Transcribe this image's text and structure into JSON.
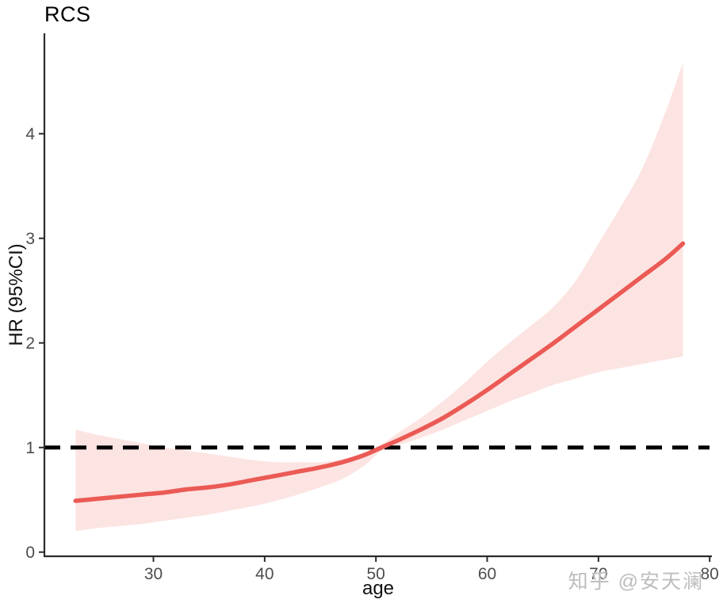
{
  "watermark": {
    "text": "知乎 @安天澜"
  },
  "chart_data": {
    "type": "line",
    "title": "RCS",
    "xlabel": "age",
    "ylabel": "HR (95%CI)",
    "x": [
      23,
      25,
      27,
      29,
      31,
      33,
      35,
      37,
      39,
      41,
      43,
      45,
      47,
      49,
      50.5,
      52,
      54,
      56,
      58,
      60,
      62,
      64,
      66,
      68,
      70,
      72,
      74,
      76,
      77.6
    ],
    "series": [
      {
        "name": "HR",
        "values": [
          0.49,
          0.51,
          0.53,
          0.55,
          0.57,
          0.6,
          0.62,
          0.65,
          0.69,
          0.73,
          0.77,
          0.81,
          0.86,
          0.93,
          1.0,
          1.07,
          1.17,
          1.28,
          1.41,
          1.55,
          1.7,
          1.85,
          2.0,
          2.16,
          2.32,
          2.48,
          2.64,
          2.8,
          2.95
        ]
      },
      {
        "name": "lower 95% CI",
        "values": [
          0.2,
          0.23,
          0.25,
          0.27,
          0.3,
          0.33,
          0.36,
          0.4,
          0.44,
          0.49,
          0.55,
          0.62,
          0.7,
          0.83,
          0.97,
          1.02,
          1.09,
          1.17,
          1.26,
          1.35,
          1.44,
          1.52,
          1.6,
          1.66,
          1.72,
          1.76,
          1.8,
          1.84,
          1.87
        ]
      },
      {
        "name": "upper 95% CI",
        "values": [
          1.17,
          1.12,
          1.08,
          1.04,
          1.0,
          0.97,
          0.94,
          0.91,
          0.88,
          0.86,
          0.86,
          0.86,
          0.89,
          0.95,
          1.03,
          1.14,
          1.28,
          1.44,
          1.62,
          1.82,
          2.0,
          2.17,
          2.35,
          2.6,
          2.95,
          3.3,
          3.68,
          4.2,
          4.68
        ]
      }
    ],
    "reference_line": {
      "y": 1,
      "style": "dashed"
    },
    "x_ticks": [
      30,
      40,
      50,
      60,
      70,
      80
    ],
    "y_ticks": [
      0,
      1,
      2,
      3,
      4
    ],
    "xlim": [
      20.2,
      80.2
    ],
    "ylim": [
      -0.04,
      4.96
    ],
    "grid": false,
    "legend": "none",
    "colors": {
      "line": "#eb5a55",
      "band": "#fce4e2",
      "reference": "#000000",
      "axis": "#2b2b2b",
      "tick_label": "#4d4d4d"
    }
  }
}
